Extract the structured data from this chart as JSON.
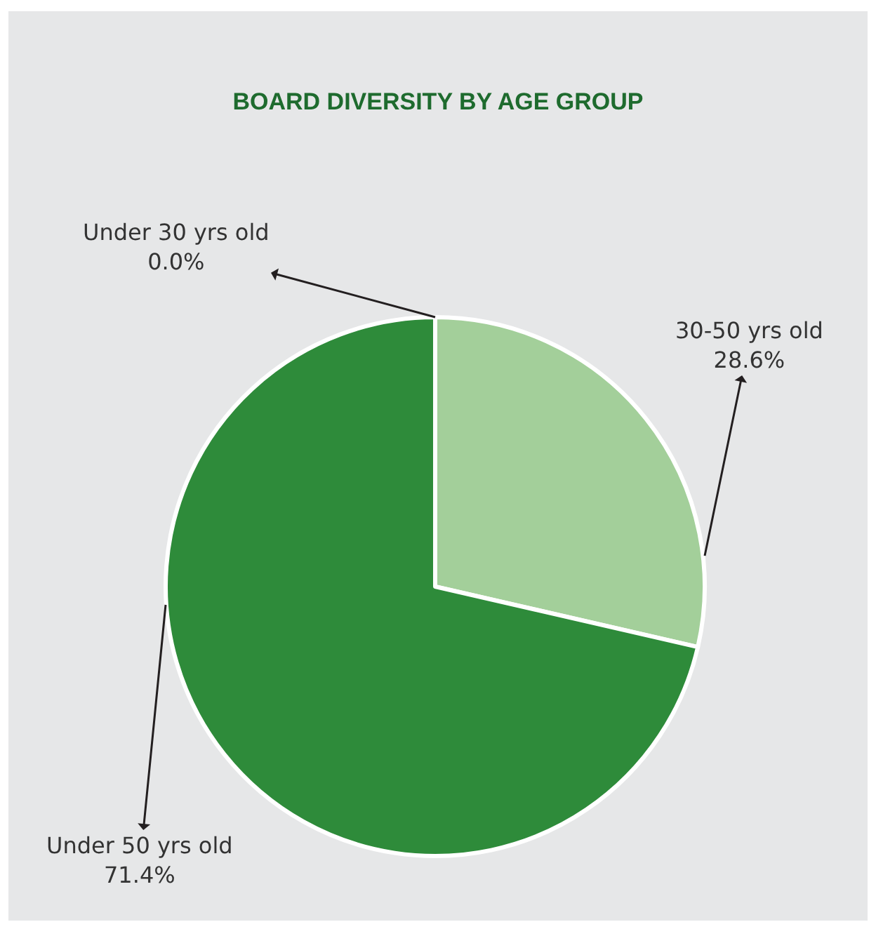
{
  "chart_data": {
    "type": "pie",
    "title": "BOARD DIVERSITY BY AGE GROUP",
    "categories": [
      "Under 30 yrs old",
      "30-50 yrs old",
      "Under 50 yrs old"
    ],
    "values": [
      0.0,
      28.6,
      71.4
    ],
    "value_labels": [
      "0.0%",
      "28.6%",
      "71.4%"
    ],
    "colors": [
      "#6fb96a",
      "#a3cf9a",
      "#2e8b3a"
    ],
    "legend": false
  }
}
